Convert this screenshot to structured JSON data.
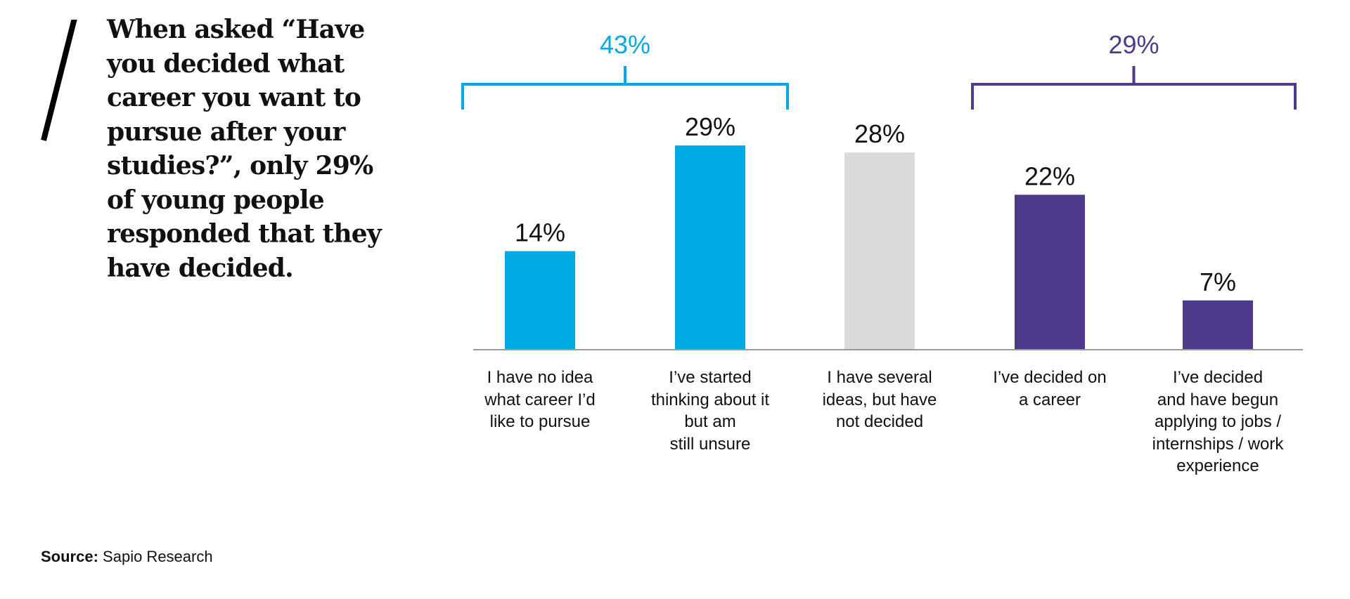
{
  "headline": "When asked “Have you decided what career you want to pursue after your studies?”, only 29% of young people responded that they have decided.",
  "source": {
    "label": "Source:",
    "text": "Sapio Research"
  },
  "colors": {
    "blue": "#00a8e4",
    "grey": "#d9dbd9",
    "purple": "#4e3a8b",
    "axis": "#9a9a9a",
    "text": "#111111"
  },
  "chart_data": {
    "type": "bar",
    "categories": [
      "I have no idea\nwhat career I’d\nlike to pursue",
      "I’ve started\nthinking about it\nbut am\nstill unsure",
      "I have several\nideas, but have\nnot decided",
      "I’ve decided on\na career",
      "I’ve decided\nand have begun\napplying to jobs /\ninternships / work\nexperience"
    ],
    "values": [
      14,
      29,
      28,
      22,
      7
    ],
    "value_labels": [
      "14%",
      "29%",
      "28%",
      "22%",
      "7%"
    ],
    "bar_colors": [
      "blue",
      "blue",
      "grey",
      "purple",
      "purple"
    ],
    "unit": "%",
    "ylim": [
      0,
      30
    ],
    "grid": false,
    "groups": [
      {
        "label": "43%",
        "value": 43,
        "from": 0,
        "to": 1,
        "color": "blue"
      },
      {
        "label": "29%",
        "value": 29,
        "from": 3,
        "to": 4,
        "color": "purple"
      }
    ]
  }
}
